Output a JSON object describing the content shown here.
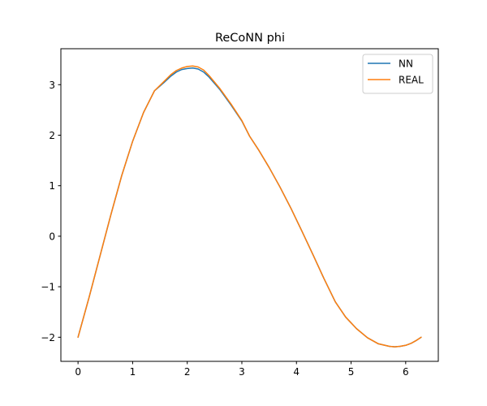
{
  "chart_data": {
    "type": "line",
    "title": "ReCoNN phi",
    "xlabel": "",
    "ylabel": "",
    "xlim": [
      -0.3142,
      6.5973
    ],
    "ylim": [
      -2.477,
      3.712
    ],
    "xticks": [
      0,
      1,
      2,
      3,
      4,
      5,
      6
    ],
    "yticks": [
      -2,
      -1,
      0,
      1,
      2,
      3
    ],
    "xtick_labels": [
      "0",
      "1",
      "2",
      "3",
      "4",
      "5",
      "6"
    ],
    "ytick_labels": [
      "−2",
      "−1",
      "0",
      "1",
      "2",
      "3"
    ],
    "grid": false,
    "legend_position": "upper right",
    "series": [
      {
        "name": "NN",
        "color": "#1f77b4",
        "x": [
          0,
          0.2,
          0.4,
          0.6,
          0.8,
          1.0,
          1.2,
          1.4,
          1.571,
          1.7,
          1.8,
          1.9,
          2.0,
          2.1,
          2.2,
          2.3,
          2.4,
          2.6,
          2.8,
          3.0,
          3.142,
          3.3,
          3.5,
          3.7,
          3.9,
          4.1,
          4.3,
          4.5,
          4.712,
          4.9,
          5.1,
          5.3,
          5.5,
          5.7,
          5.8,
          5.9,
          6.0,
          6.1,
          6.2,
          6.283
        ],
        "y": [
          -2.0,
          -1.22,
          -0.4,
          0.42,
          1.2,
          1.88,
          2.45,
          2.88,
          3.04,
          3.17,
          3.25,
          3.3,
          3.32,
          3.33,
          3.31,
          3.25,
          3.15,
          2.9,
          2.6,
          2.28,
          1.98,
          1.72,
          1.36,
          0.97,
          0.55,
          0.1,
          -0.36,
          -0.83,
          -1.3,
          -1.6,
          -1.83,
          -2.01,
          -2.13,
          -2.18,
          -2.19,
          -2.18,
          -2.16,
          -2.12,
          -2.06,
          -2.0
        ]
      },
      {
        "name": "REAL",
        "color": "#ff7f0e",
        "x": [
          0,
          0.2,
          0.4,
          0.6,
          0.8,
          1.0,
          1.2,
          1.4,
          1.571,
          1.7,
          1.8,
          1.9,
          2.0,
          2.1,
          2.2,
          2.3,
          2.4,
          2.6,
          2.8,
          3.0,
          3.142,
          3.3,
          3.5,
          3.7,
          3.9,
          4.1,
          4.3,
          4.5,
          4.712,
          4.9,
          5.1,
          5.3,
          5.5,
          5.7,
          5.8,
          5.9,
          6.0,
          6.1,
          6.2,
          6.283
        ],
        "y": [
          -2.0,
          -1.22,
          -0.4,
          0.42,
          1.2,
          1.88,
          2.45,
          2.88,
          3.06,
          3.2,
          3.28,
          3.33,
          3.36,
          3.37,
          3.35,
          3.29,
          3.18,
          2.92,
          2.62,
          2.29,
          1.98,
          1.72,
          1.36,
          0.97,
          0.55,
          0.1,
          -0.36,
          -0.83,
          -1.3,
          -1.6,
          -1.83,
          -2.01,
          -2.13,
          -2.18,
          -2.19,
          -2.18,
          -2.16,
          -2.12,
          -2.06,
          -2.0
        ]
      }
    ]
  }
}
